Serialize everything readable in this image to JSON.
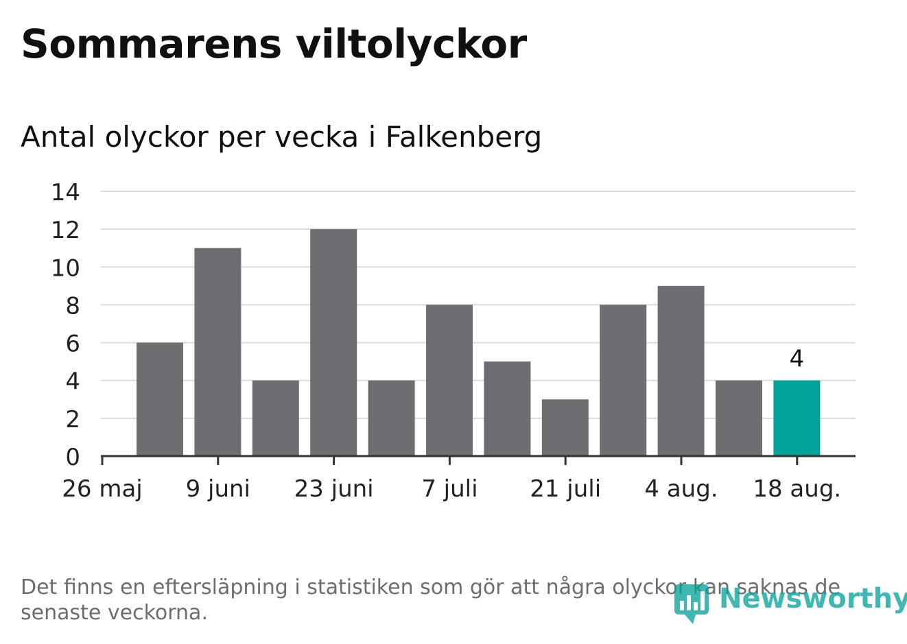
{
  "header": {
    "title": "Sommarens viltolyckor",
    "subtitle": "Antal olyckor per vecka i Falkenberg"
  },
  "footer": {
    "note": "Det finns en eftersläpning i statistiken som gör att några olyckor kan saknas de senaste veckorna.",
    "logo_text": "Newsworthy"
  },
  "colors": {
    "bar": "#6e6d72",
    "highlight": "#00a39a",
    "grid": "#dcdcdc",
    "axis": "#333333",
    "logo": "#00a199"
  },
  "chart_data": {
    "type": "bar",
    "title": "Sommarens viltolyckor",
    "subtitle": "Antal olyckor per vecka i Falkenberg",
    "xlabel": "",
    "ylabel": "",
    "ylim": [
      0,
      14
    ],
    "yticks": [
      "0",
      "2",
      "4",
      "6",
      "8",
      "10",
      "12",
      "14"
    ],
    "xticks": [
      "26 maj",
      "9 juni",
      "23 juni",
      "7 juli",
      "21 juli",
      "4 aug.",
      "18 aug."
    ],
    "values": [
      6,
      11,
      4,
      12,
      4,
      8,
      5,
      3,
      8,
      9,
      4,
      4
    ],
    "highlight_index": 11,
    "data_label": "4",
    "grid": true,
    "legend": "none"
  }
}
